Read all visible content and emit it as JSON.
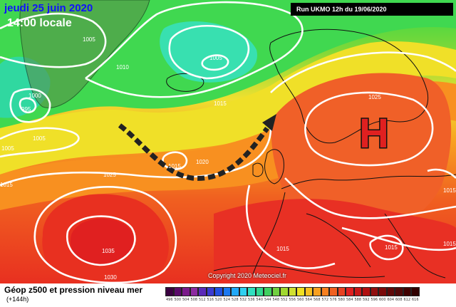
{
  "header": {
    "date": "jeudi 25 juin 2020",
    "time": "14:00 locale",
    "run": "Run UKMO 12h du 19/06/2020"
  },
  "map": {
    "high_symbol": "H",
    "isobar_labels": [
      "1005",
      "1005",
      "1010",
      "1000",
      "995",
      "1005",
      "1005",
      "1015",
      "1025",
      "1015",
      "1020",
      "1025",
      "1035",
      "1030",
      "1015",
      "1015",
      "1015",
      "1015",
      "1015"
    ],
    "copyright": "Copyright 2020 Meteociel.fr"
  },
  "legend": {
    "title": "Géop z500 et pression niveau mer",
    "subtitle": "(+144h)",
    "colors": [
      "#3a0040",
      "#5a0a6a",
      "#7a1a8a",
      "#8c2aa0",
      "#5a2ab8",
      "#3a3ad0",
      "#2050e0",
      "#1a78f0",
      "#20a8f8",
      "#30d0f0",
      "#30e0c0",
      "#30d890",
      "#40d060",
      "#70d040",
      "#a0d830",
      "#d0e030",
      "#f0e020",
      "#f8c020",
      "#f8a020",
      "#f88020",
      "#f06020",
      "#e84020",
      "#e02020",
      "#c81818",
      "#b01010",
      "#901010",
      "#7a0a0a",
      "#600808",
      "#500808",
      "#400000",
      "#300000"
    ],
    "labels": [
      "496",
      "500",
      "504",
      "508",
      "512",
      "516",
      "520",
      "524",
      "528",
      "532",
      "536",
      "540",
      "544",
      "548",
      "552",
      "556",
      "560",
      "564",
      "568",
      "572",
      "576",
      "580",
      "584",
      "588",
      "592",
      "596",
      "600",
      "604",
      "608",
      "612",
      "616"
    ]
  }
}
